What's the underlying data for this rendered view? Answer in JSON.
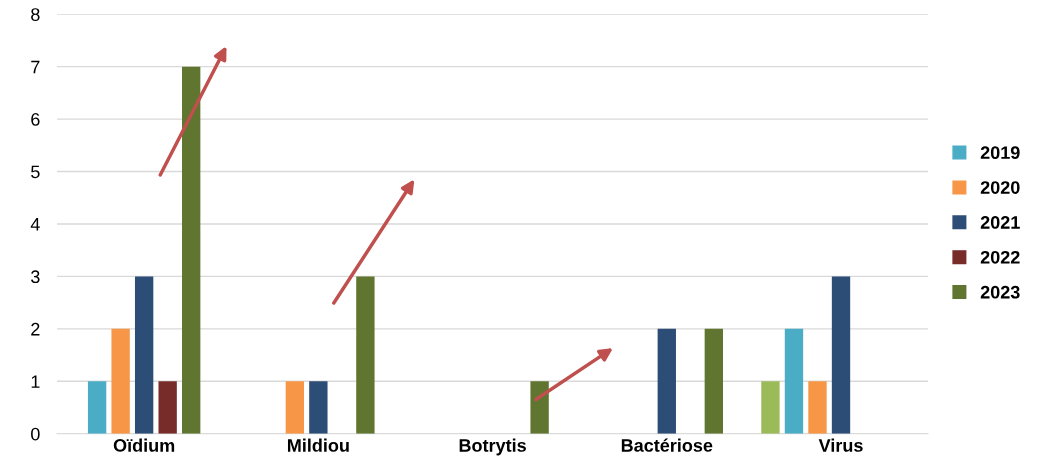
{
  "chart_data": {
    "type": "bar",
    "categories": [
      "Oïdium",
      "Mildiou",
      "Botrytis",
      "Bactériose",
      "Virus"
    ],
    "series": [
      {
        "color": "#9bbb59",
        "values": [
          null,
          null,
          null,
          null,
          1
        ]
      },
      {
        "name": "2019",
        "color": "#4bacc6",
        "values": [
          1,
          null,
          null,
          null,
          2
        ]
      },
      {
        "name": "2020",
        "color": "#f79646",
        "values": [
          2,
          1,
          null,
          null,
          1
        ]
      },
      {
        "name": "2021",
        "color": "#2c4d75",
        "values": [
          3,
          1,
          null,
          2,
          3
        ]
      },
      {
        "name": "2022",
        "color": "#772c2a",
        "values": [
          1,
          null,
          null,
          null,
          null
        ]
      },
      {
        "name": "2023",
        "color": "#5f7530",
        "values": [
          7,
          3,
          1,
          2,
          null
        ]
      }
    ],
    "ylim": [
      0,
      8
    ],
    "yticks": [
      0,
      1,
      2,
      3,
      4,
      5,
      6,
      7,
      8
    ],
    "grid": "y",
    "legend": "right"
  }
}
